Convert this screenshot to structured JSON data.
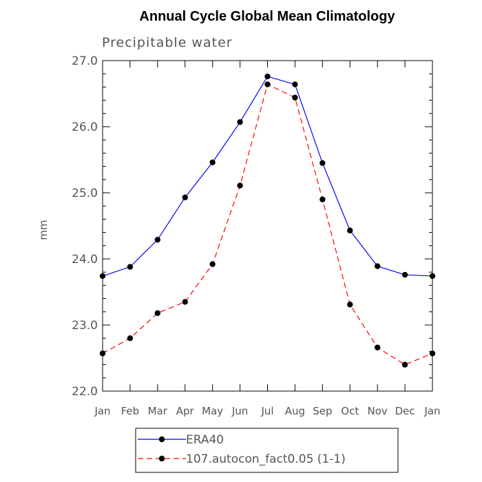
{
  "chart_data": {
    "type": "line",
    "title": "Annual Cycle Global Mean Climatology",
    "subtitle": "Precipitable water",
    "xlabel": "",
    "ylabel": "mm",
    "categories": [
      "Jan",
      "Feb",
      "Mar",
      "Apr",
      "May",
      "Jun",
      "Jul",
      "Aug",
      "Sep",
      "Oct",
      "Nov",
      "Dec",
      "Jan"
    ],
    "ylim": [
      22.0,
      27.0
    ],
    "yticks": [
      "22.0",
      "23.0",
      "24.0",
      "25.0",
      "26.0",
      "27.0"
    ],
    "grid": false,
    "legend_position": "bottom",
    "series": [
      {
        "name": "ERA40",
        "color": "#0000ff",
        "dash": "solid",
        "values": [
          23.74,
          23.88,
          24.29,
          24.93,
          25.46,
          26.07,
          26.76,
          26.64,
          25.45,
          24.43,
          23.89,
          23.76,
          23.74
        ]
      },
      {
        "name": "107.autocon_fact0.05 (1-1)",
        "color": "#ff0000",
        "dash": "dashed",
        "values": [
          22.57,
          22.8,
          23.18,
          23.35,
          23.92,
          25.11,
          26.64,
          26.44,
          24.9,
          23.31,
          22.66,
          22.4,
          22.57
        ]
      }
    ]
  }
}
